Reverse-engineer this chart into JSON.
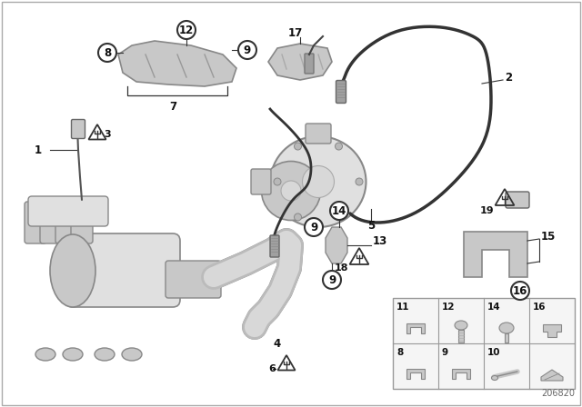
{
  "bg_color": "#ffffff",
  "fig_width": 6.4,
  "fig_height": 4.48,
  "diagram_id": "206820",
  "border_color": "#aaaaaa",
  "text_color": "#111111",
  "line_color": "#333333",
  "part_color_light": "#e0e0e0",
  "part_color_mid": "#c8c8c8",
  "part_color_dark": "#a0a0a0",
  "part_edge": "#888888",
  "grid_border": "#999999",
  "label_font": 8.5
}
